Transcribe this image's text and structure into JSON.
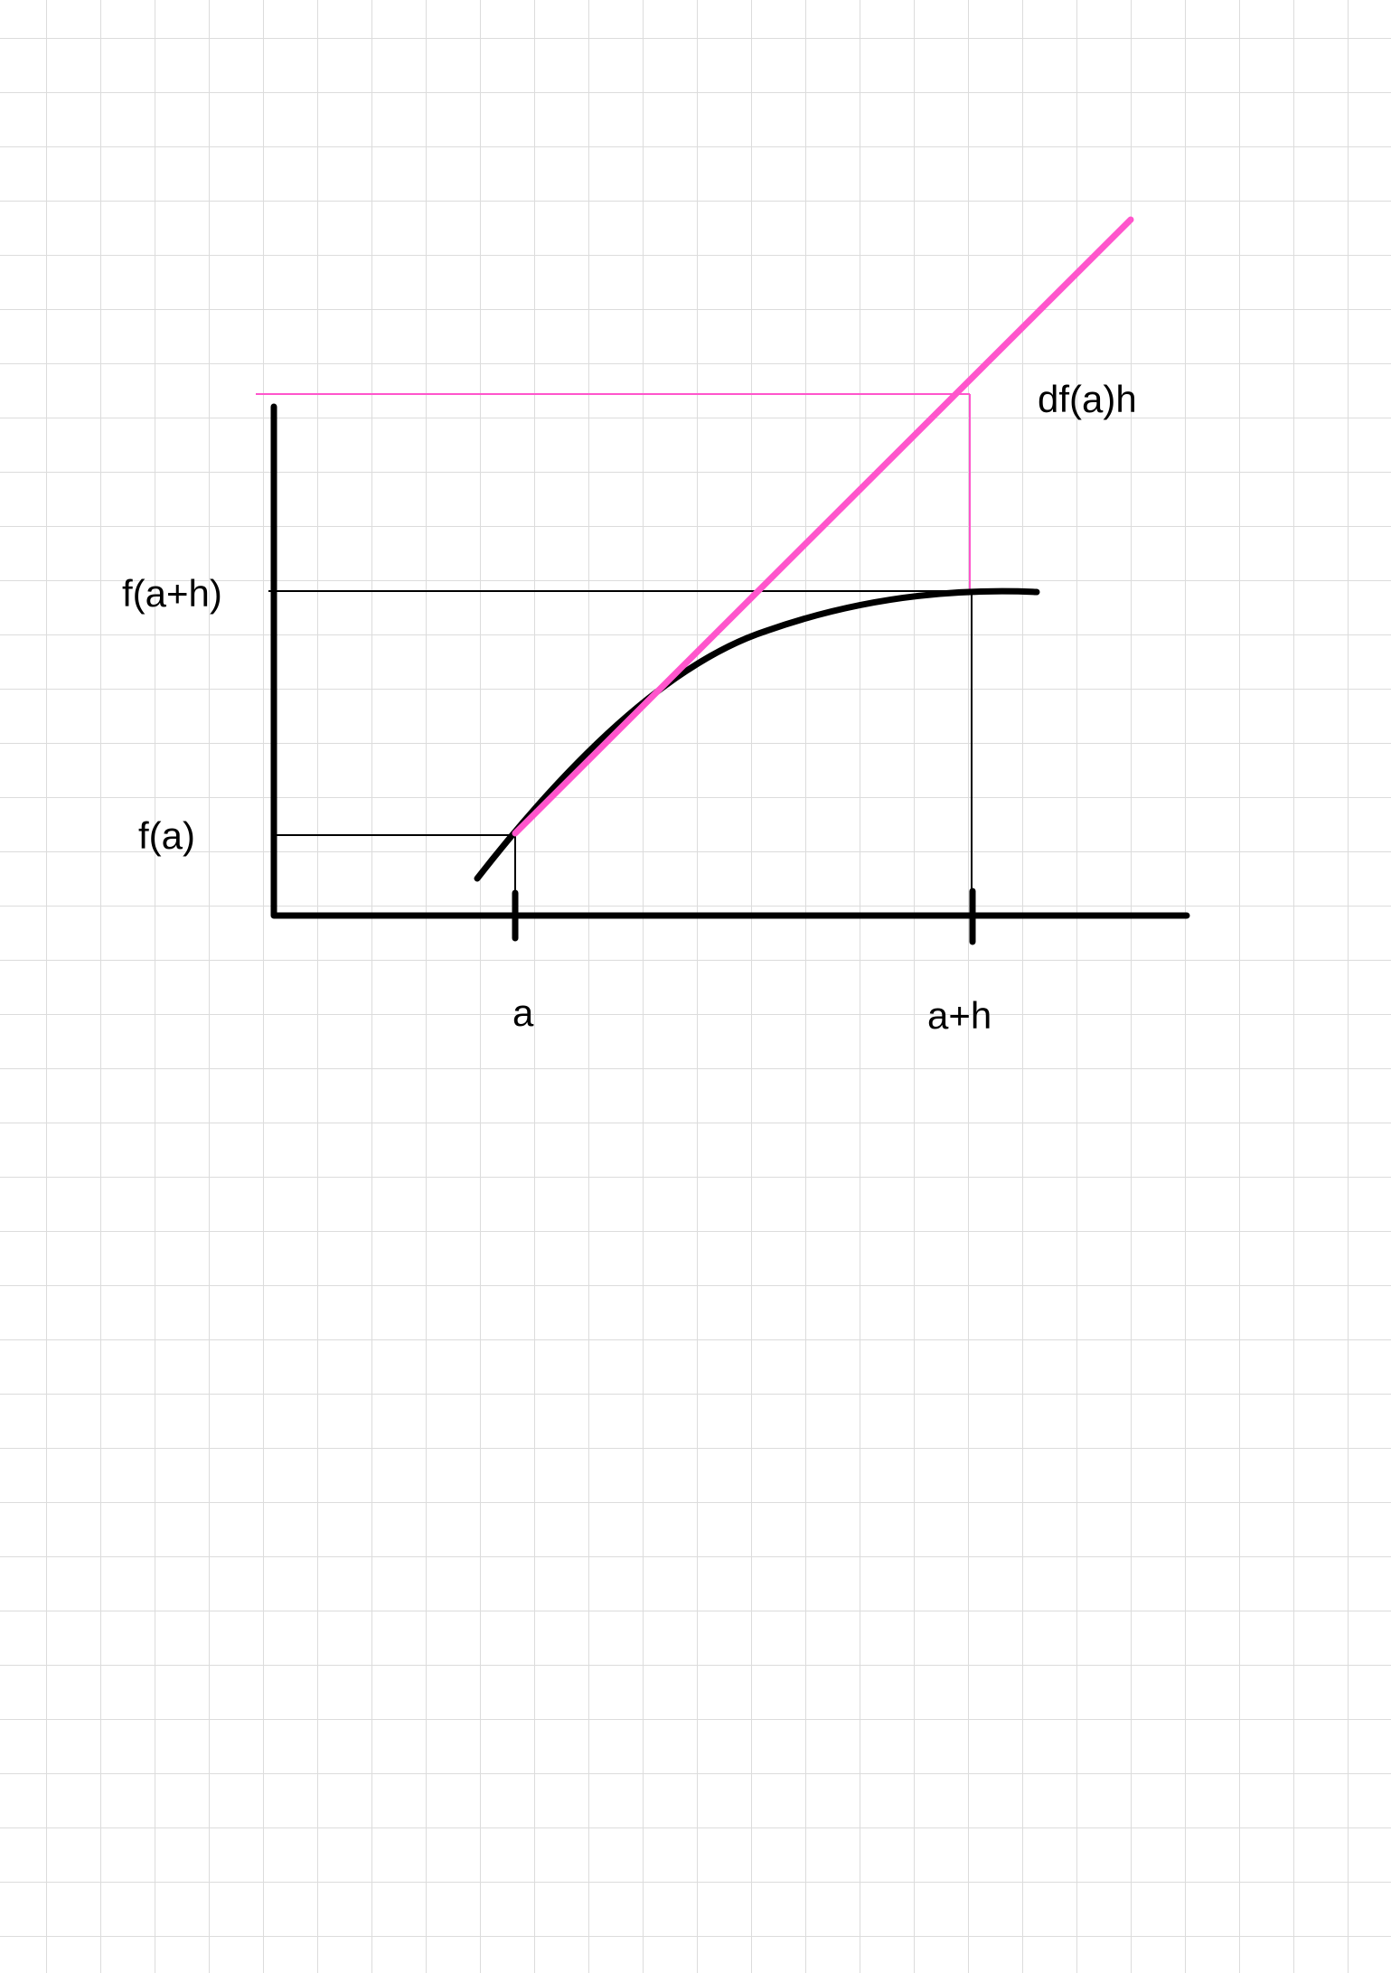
{
  "colors": {
    "ink": "#000000",
    "tangent": "#ff55cc",
    "grid": "#dcdcdc",
    "paper": "#ffffff"
  },
  "labels": {
    "f_a": "f(a)",
    "f_a_plus_h": "f(a+h)",
    "a": "a",
    "a_plus_h": "a+h",
    "differential": "df(a)h"
  }
}
